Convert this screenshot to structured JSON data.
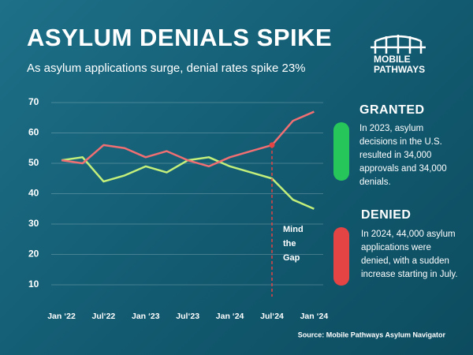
{
  "chart_data": {
    "type": "line",
    "title": "ASYLUM DENIALS SPIKE",
    "subtitle": "As asylum applications surge, denial rates spike 23%",
    "categories": [
      "Jan ‘22",
      null,
      "Jul‘22",
      null,
      "Jan ‘23",
      null,
      "Jul‘23",
      null,
      "Jan ‘24",
      null,
      "Jul‘24",
      null,
      "Jan ‘24"
    ],
    "series": [
      {
        "name": "GRANTED",
        "color": "#c3ef7a",
        "values": [
          51,
          52,
          44,
          46,
          49,
          47,
          51,
          52,
          49,
          47,
          45,
          38,
          35
        ],
        "description": "In 2023, asylum decisions in the U.S. resulted in 34,000 approvals and 34,000 denials."
      },
      {
        "name": "DENIED",
        "color": "#ef6f72",
        "values": [
          51,
          50,
          56,
          55,
          52,
          54,
          51,
          49,
          52,
          54,
          56,
          64,
          67
        ],
        "description": "In 2024, 44,000 asylum applications were denied, with a sudden increase starting in July."
      }
    ],
    "ylim": [
      10,
      70
    ],
    "yticks": [
      10,
      20,
      30,
      40,
      50,
      60,
      70
    ],
    "grid": true,
    "annotation": [
      "Mind",
      "the",
      "Gap"
    ],
    "source": "Source: Mobile Pathways Asylum Navigator",
    "logo": [
      "MOBILE",
      "PATHWAYS"
    ]
  }
}
